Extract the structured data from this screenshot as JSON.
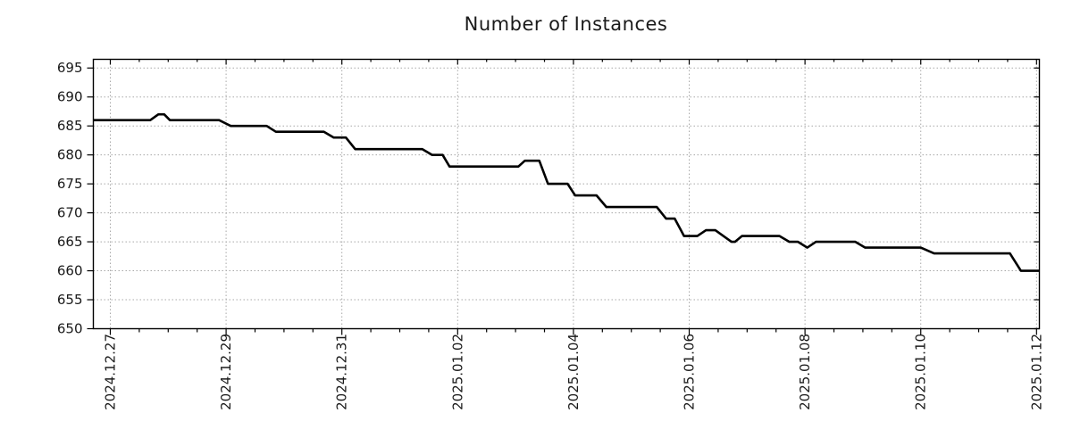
{
  "chart_data": {
    "type": "line",
    "title": "Number of Instances",
    "series_name": "number-of-instances",
    "x_unit": "days since first labeled tick (2024.12.27 = 0)",
    "x_tick_positions": [
      0,
      2,
      4,
      6,
      8,
      10,
      12,
      14,
      16
    ],
    "x_tick_labels": [
      "2024.12.27",
      "2024.12.29",
      "2024.12.31",
      "2025.01.02",
      "2025.01.04",
      "2025.01.06",
      "2025.01.08",
      "2025.01.10",
      "2025.01.12"
    ],
    "x_minor_step": 0.5,
    "xlim": [
      -0.293,
      16.049
    ],
    "y_ticks": [
      650,
      655,
      660,
      665,
      670,
      675,
      680,
      685,
      690,
      695
    ],
    "ylim": [
      650,
      696.5
    ],
    "grid": "dotted",
    "legend": "none",
    "line_color": "#000000",
    "grid_color": "#a8a8a8",
    "axis_color": "#000000",
    "line_width": 2.6,
    "points": [
      [
        -0.29,
        686
      ],
      [
        0.69,
        686
      ],
      [
        0.83,
        687
      ],
      [
        0.93,
        687
      ],
      [
        1.03,
        686
      ],
      [
        1.88,
        686
      ],
      [
        2.08,
        685
      ],
      [
        2.7,
        685
      ],
      [
        2.86,
        684
      ],
      [
        3.69,
        684
      ],
      [
        3.86,
        683
      ],
      [
        4.07,
        683
      ],
      [
        4.23,
        681
      ],
      [
        5.39,
        681
      ],
      [
        5.56,
        680
      ],
      [
        5.74,
        680
      ],
      [
        5.86,
        678
      ],
      [
        7.05,
        678
      ],
      [
        7.16,
        679
      ],
      [
        7.41,
        679
      ],
      [
        7.56,
        675
      ],
      [
        7.9,
        675
      ],
      [
        8.03,
        673
      ],
      [
        8.4,
        673
      ],
      [
        8.57,
        671
      ],
      [
        9.44,
        671
      ],
      [
        9.6,
        669
      ],
      [
        9.75,
        669
      ],
      [
        9.91,
        666
      ],
      [
        10.14,
        666
      ],
      [
        10.29,
        667
      ],
      [
        10.45,
        667
      ],
      [
        10.73,
        665
      ],
      [
        10.79,
        665
      ],
      [
        10.91,
        666
      ],
      [
        11.56,
        666
      ],
      [
        11.73,
        665
      ],
      [
        11.88,
        665
      ],
      [
        12.04,
        664
      ],
      [
        12.19,
        665
      ],
      [
        12.87,
        665
      ],
      [
        13.04,
        664
      ],
      [
        14.0,
        664
      ],
      [
        14.23,
        663
      ],
      [
        15.54,
        663
      ],
      [
        15.73,
        660
      ],
      [
        16.05,
        660
      ]
    ]
  }
}
